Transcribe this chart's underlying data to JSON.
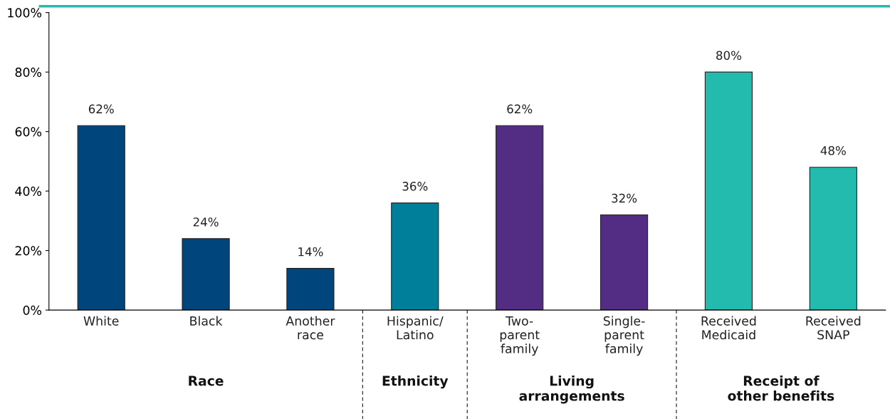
{
  "chart_data": {
    "type": "bar",
    "categories": [
      "White",
      "Black",
      "Another\nrace",
      "Hispanic/\nLatino",
      "Two-\nparent\nfamily",
      "Single-\nparent\nfamily",
      "Received\nMedicaid",
      "Received\nSNAP"
    ],
    "values": [
      62,
      24,
      14,
      36,
      62,
      32,
      80,
      48
    ],
    "colors": [
      "#00457c",
      "#00457c",
      "#00457c",
      "#007f9b",
      "#532d83",
      "#532d83",
      "#22bbad",
      "#22bbad"
    ],
    "value_labels": [
      "62%",
      "24%",
      "14%",
      "36%",
      "62%",
      "32%",
      "80%",
      "48%"
    ],
    "ylim": [
      0,
      100
    ],
    "yticks": [
      {
        "value": 0,
        "label": "0%"
      },
      {
        "value": 20,
        "label": "20%"
      },
      {
        "value": 40,
        "label": "40%"
      },
      {
        "value": 60,
        "label": "60%"
      },
      {
        "value": 80,
        "label": "80%"
      },
      {
        "value": 100,
        "label": "100%"
      }
    ],
    "annotations": [
      "Race",
      "Ethnicity",
      "Living\narrangements",
      "Receipt of\nother benefits"
    ],
    "grid": false,
    "legend": false
  }
}
